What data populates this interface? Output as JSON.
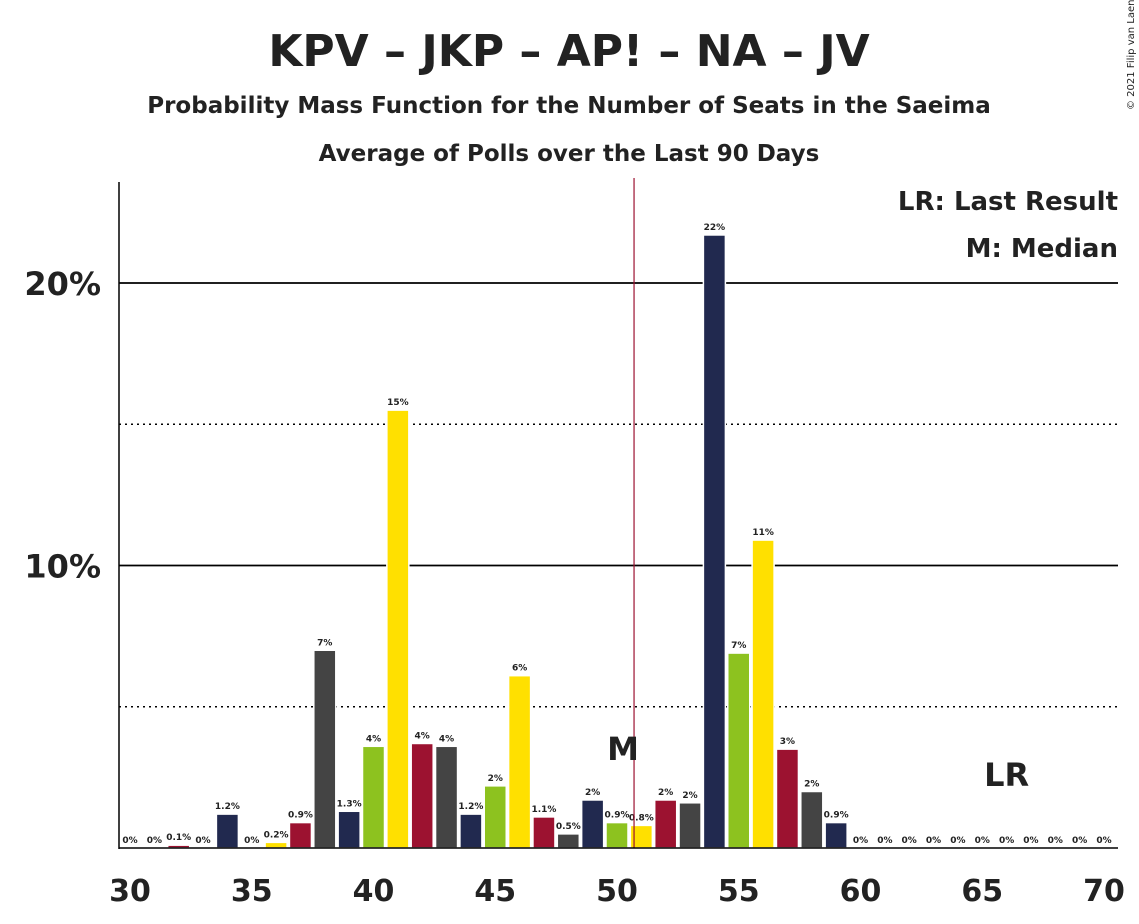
{
  "chart_data": {
    "type": "bar",
    "title": "KPV – JKP – AP! – NA – JV",
    "subtitle": "Probability Mass Function for the Number of Seats in the Saeima",
    "subtitle2": "Average of Polls over the Last 90 Days",
    "copyright": "© 2021 Filip van Laenen",
    "x": [
      30,
      31,
      32,
      33,
      34,
      35,
      36,
      37,
      38,
      39,
      40,
      41,
      42,
      43,
      44,
      45,
      46,
      47,
      48,
      49,
      50,
      51,
      52,
      53,
      54,
      55,
      56,
      57,
      58,
      59,
      60,
      61,
      62,
      63,
      64,
      65,
      66,
      67,
      68,
      69,
      70
    ],
    "values": [
      0,
      0,
      0.1,
      0,
      1.2,
      0,
      0.2,
      0.9,
      7,
      1.3,
      3.6,
      15.5,
      3.7,
      3.6,
      1.2,
      2.2,
      6.1,
      1.1,
      0.5,
      1.7,
      0.9,
      0.8,
      1.7,
      1.6,
      21.7,
      6.9,
      10.9,
      3.5,
      2.0,
      0.9,
      0,
      0,
      0,
      0,
      0,
      0,
      0,
      0,
      0,
      0,
      0
    ],
    "labels": [
      "0%",
      "0%",
      "0.1%",
      "0%",
      "1.2%",
      "0%",
      "0.2%",
      "0.9%",
      "7%",
      "1.3%",
      "4%",
      "15%",
      "4%",
      "4%",
      "1.2%",
      "2%",
      "6%",
      "1.1%",
      "0.5%",
      "2%",
      "0.9%",
      "0.8%",
      "2%",
      "2%",
      "22%",
      "7%",
      "11%",
      "3%",
      "2%",
      "0.9%",
      "0%",
      "0%",
      "0%",
      "0%",
      "0%",
      "0%",
      "0%",
      "0%",
      "0%",
      "0%",
      "0%"
    ],
    "colors": [
      "#8DC21F",
      "#FFE000",
      "#9C1230",
      "#444444",
      "#21294F"
    ],
    "xticks": [
      30,
      35,
      40,
      45,
      50,
      55,
      60,
      65,
      70
    ],
    "yticks": [
      {
        "value": 10,
        "label": "10%"
      },
      {
        "value": 20,
        "label": "20%"
      }
    ],
    "ylim": [
      0,
      23.6
    ],
    "median": 50.7,
    "median_label": "M",
    "last_result": 66,
    "last_result_label": "LR",
    "legend": [
      "LR: Last Result",
      "M: Median"
    ]
  }
}
